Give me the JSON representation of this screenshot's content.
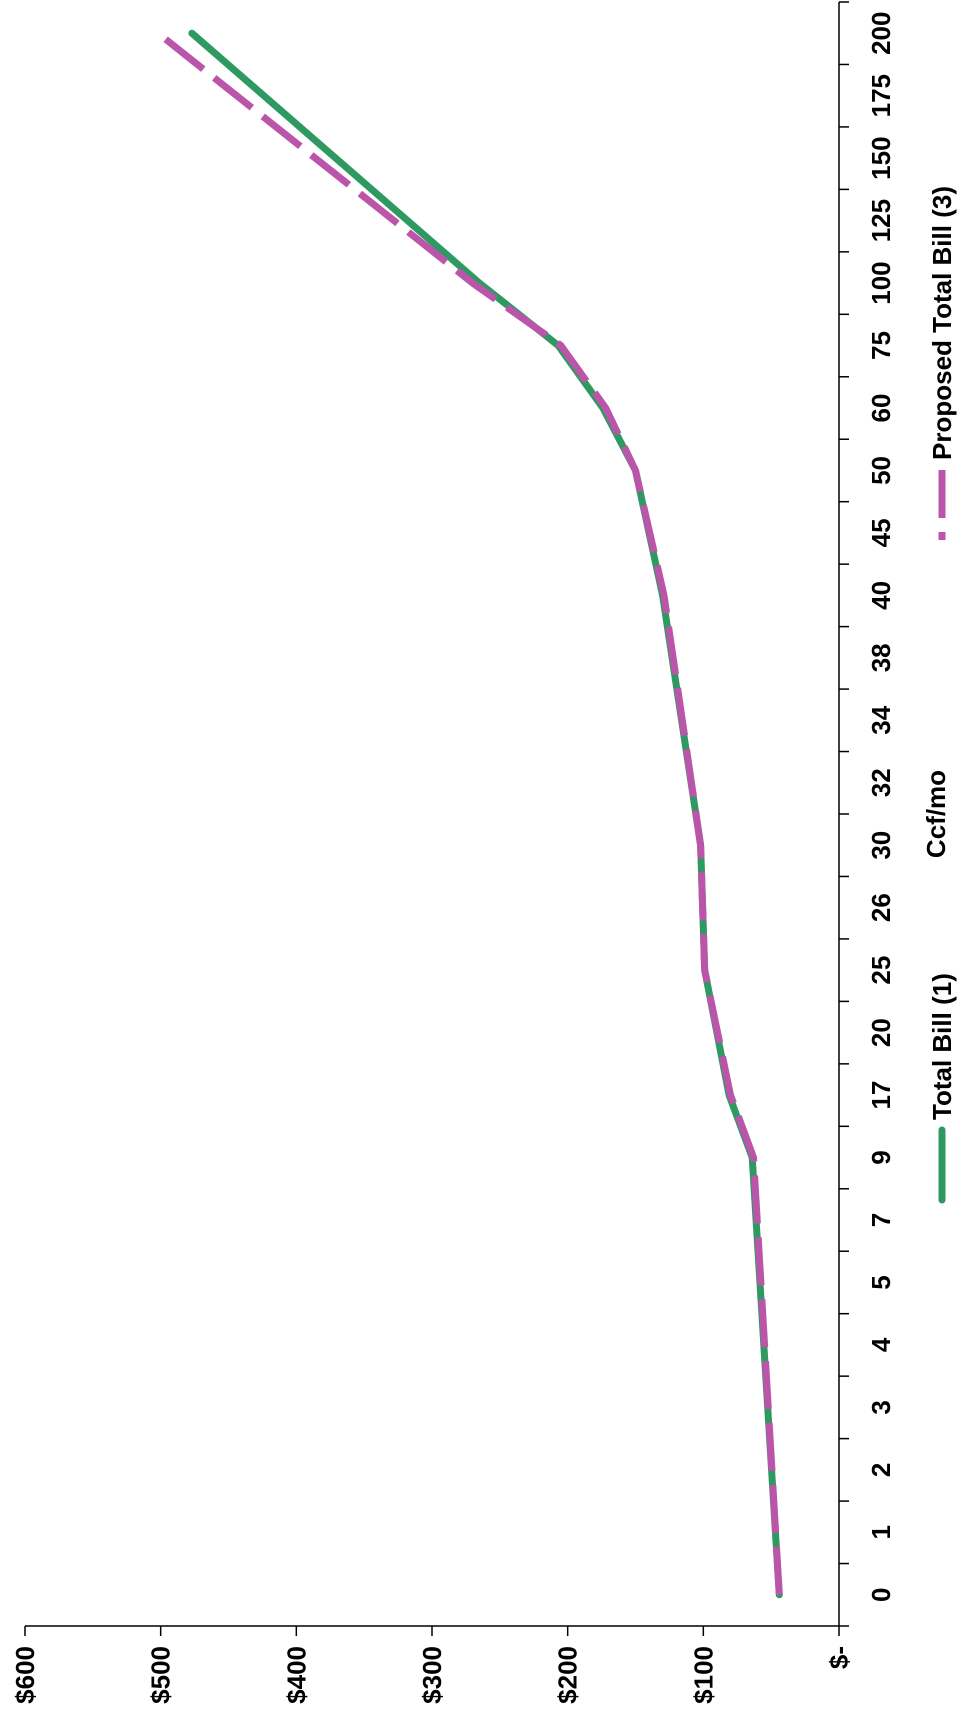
{
  "chart_data": {
    "type": "line",
    "orientation": "rotated-90-clockwise",
    "xlabel": "Ccf/mo",
    "ylabel": "",
    "categories": [
      "0",
      "1",
      "2",
      "3",
      "4",
      "5",
      "7",
      "9",
      "17",
      "20",
      "25",
      "26",
      "30",
      "32",
      "34",
      "38",
      "40",
      "45",
      "50",
      "60",
      "75",
      "100",
      "125",
      "150",
      "175",
      "200"
    ],
    "y_tick_labels": [
      "$-",
      "$100",
      "$200",
      "$300",
      "$400",
      "$500",
      "$600"
    ],
    "ylim": [
      0,
      600
    ],
    "grid": false,
    "legend_position": "bottom",
    "series": [
      {
        "name": "Total  Bill (1)",
        "color": "#2e9a62",
        "style": "solid",
        "points": [
          [
            0,
            44
          ],
          [
            9,
            64
          ],
          [
            17,
            81
          ],
          [
            25,
            99
          ],
          [
            30,
            102
          ],
          [
            40,
            130
          ],
          [
            50,
            150
          ],
          [
            60,
            174
          ],
          [
            75,
            207
          ],
          [
            100,
            265
          ],
          [
            200,
            477
          ]
        ]
      },
      {
        "name": "Proposed Total Bill (3)",
        "color": "#bb55aa",
        "style": "dashed",
        "points": [
          [
            0,
            44
          ],
          [
            9,
            63
          ],
          [
            17,
            80
          ],
          [
            25,
            99
          ],
          [
            30,
            102
          ],
          [
            40,
            129
          ],
          [
            50,
            150
          ],
          [
            60,
            172
          ],
          [
            75,
            205
          ],
          [
            100,
            270
          ],
          [
            200,
            502
          ]
        ]
      }
    ]
  }
}
